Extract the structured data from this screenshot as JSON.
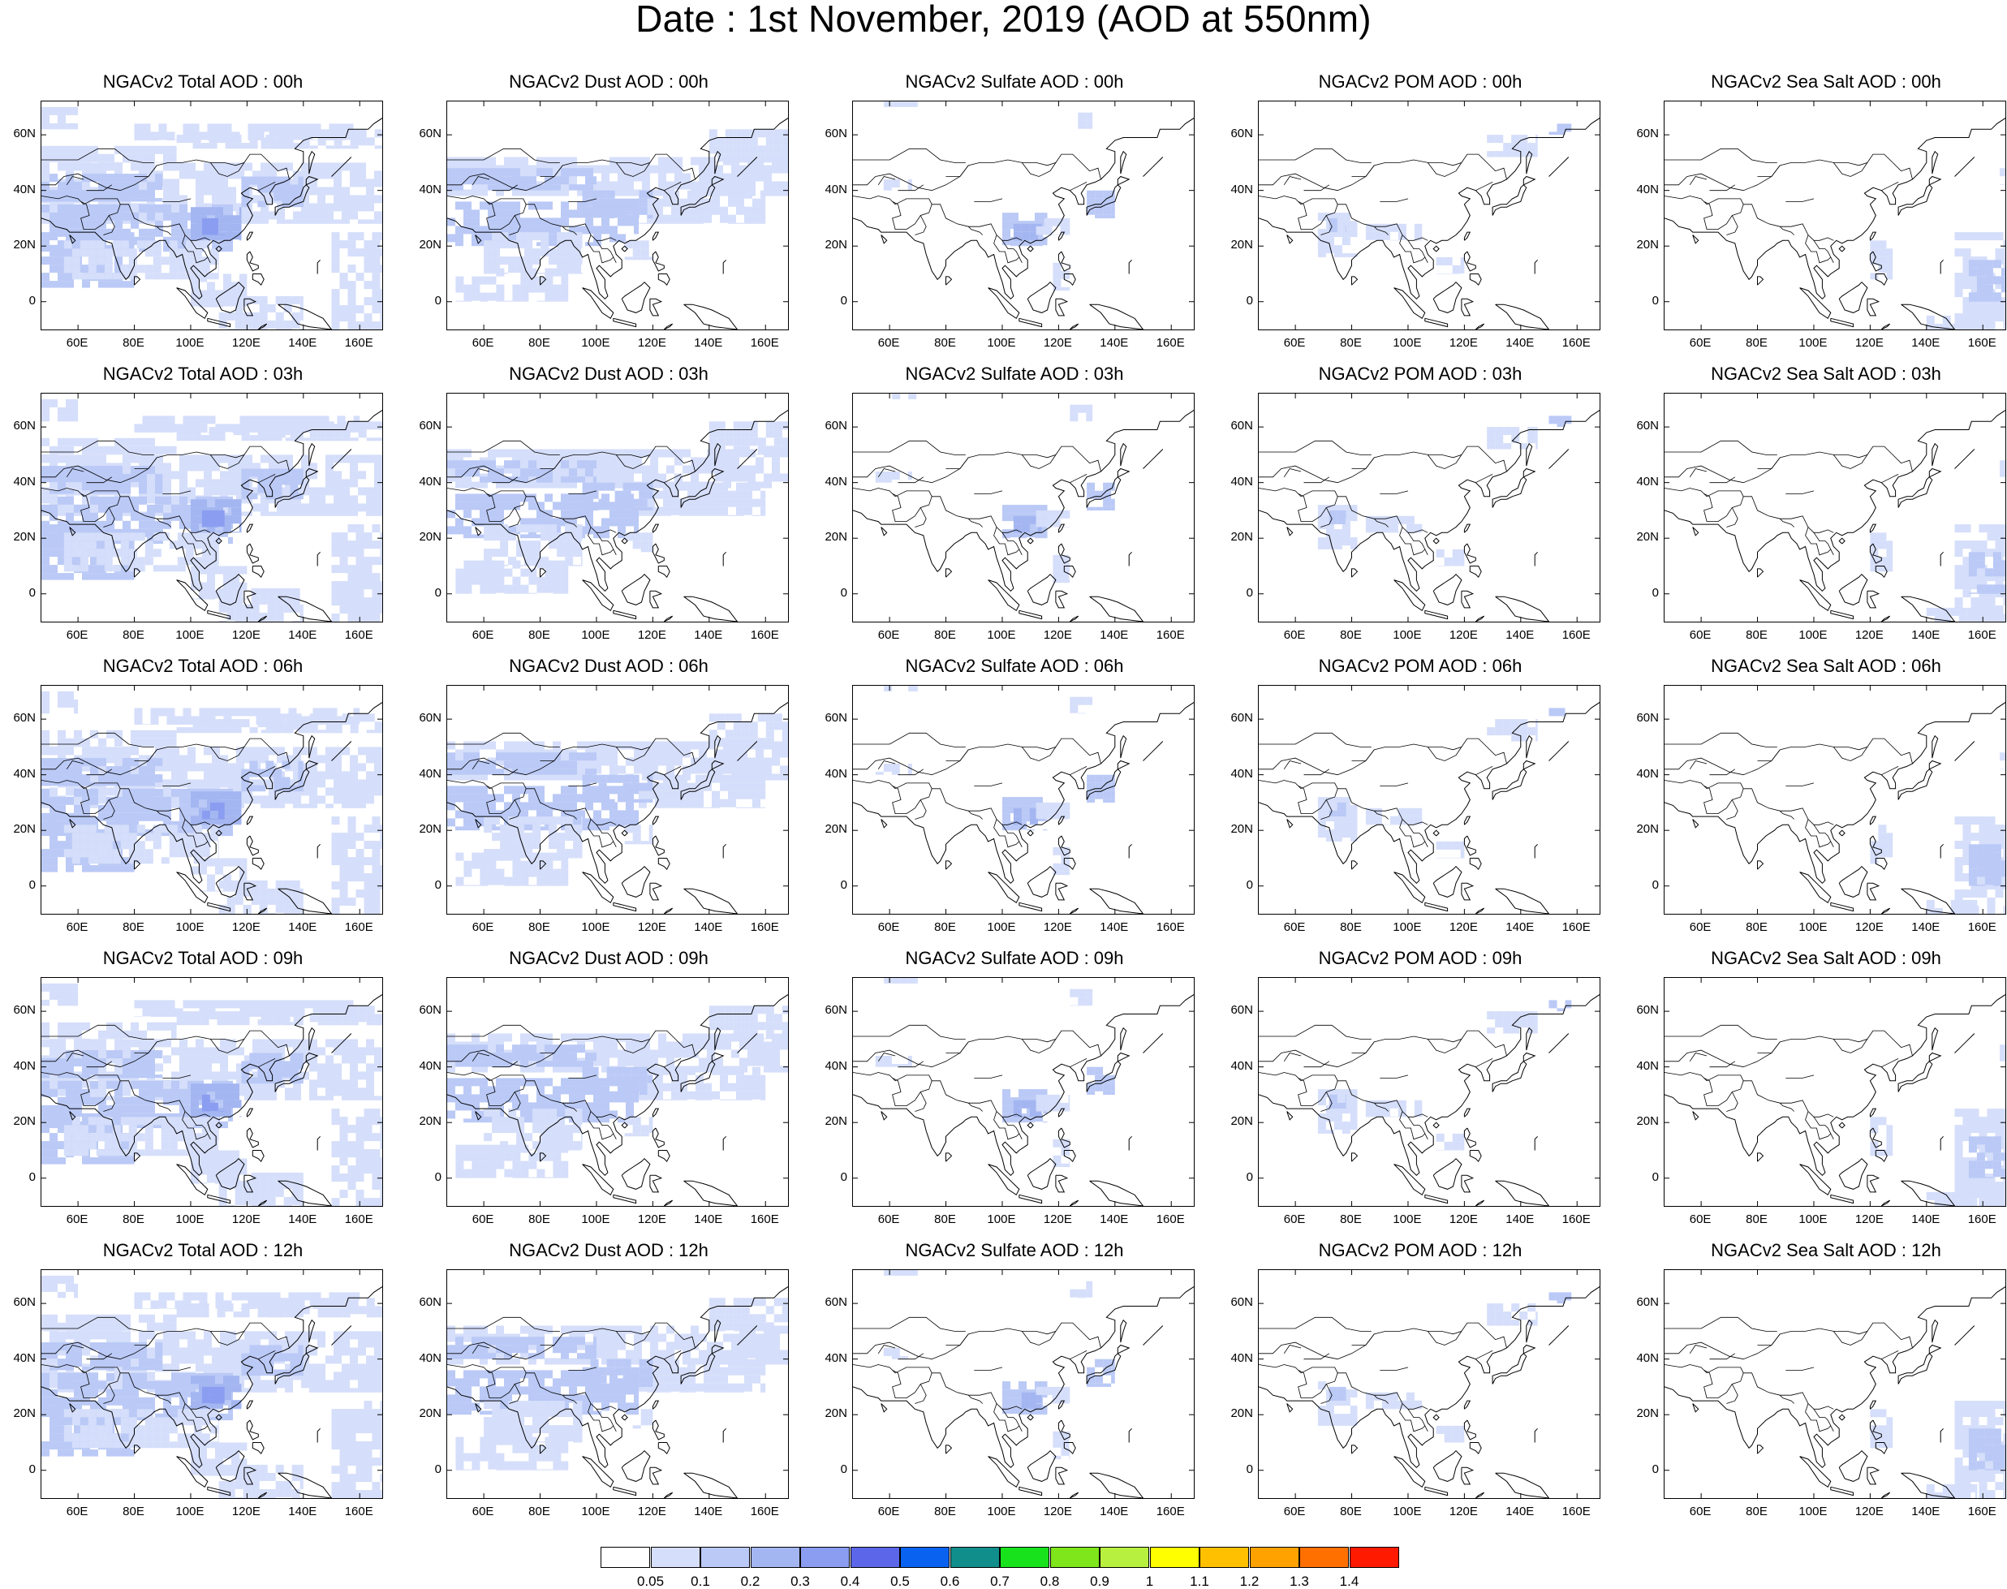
{
  "title": "Date : 1st November, 2019 (AOD at 550nm)",
  "axes": {
    "y_ticks": [
      "60N",
      "40N",
      "20N",
      "0"
    ],
    "x_ticks": [
      "60E",
      "80E",
      "100E",
      "120E",
      "140E",
      "160E"
    ]
  },
  "panels": [
    [
      "NGACv2 Total AOD : 00h",
      "NGACv2 Dust AOD : 00h",
      "NGACv2 Sulfate AOD : 00h",
      "NGACv2 POM AOD : 00h",
      "NGACv2 Sea Salt AOD : 00h"
    ],
    [
      "NGACv2 Total AOD : 03h",
      "NGACv2 Dust AOD : 03h",
      "NGACv2 Sulfate AOD : 03h",
      "NGACv2 POM AOD : 03h",
      "NGACv2 Sea Salt AOD : 03h"
    ],
    [
      "NGACv2 Total AOD : 06h",
      "NGACv2 Dust AOD : 06h",
      "NGACv2 Sulfate AOD : 06h",
      "NGACv2 POM AOD : 06h",
      "NGACv2 Sea Salt AOD : 06h"
    ],
    [
      "NGACv2 Total AOD : 09h",
      "NGACv2 Dust AOD : 09h",
      "NGACv2 Sulfate AOD : 09h",
      "NGACv2 POM AOD : 09h",
      "NGACv2 Sea Salt  AOD : 09h"
    ],
    [
      "NGACv2 Total AOD  : 12h",
      "NGACv2 Dust AOD : 12h",
      "NGACv2 Sulfate AOD : 12h",
      "NGACv2 POM  AOD : 12h",
      "NGACv2 Sea Salt  AOD : 12h"
    ]
  ],
  "colorbar": {
    "labels": [
      "0.05",
      "0.1",
      "0.2",
      "0.3",
      "0.4",
      "0.5",
      "0.6",
      "0.7",
      "0.8",
      "0.9",
      "1",
      "1.1",
      "1.2",
      "1.3",
      "1.4"
    ],
    "colors": [
      "#ffffff",
      "#d5defa",
      "#bac9f6",
      "#a4b6f1",
      "#8a9df0",
      "#5b66e8",
      "#0a63f0",
      "#108e8c",
      "#18e21c",
      "#7ee61a",
      "#b8f040",
      "#ffff00",
      "#ffc000",
      "#ffa200",
      "#ff7000",
      "#ff1a00"
    ]
  },
  "shading_colors": {
    "light": "#d5defa",
    "medium": "#bac9f6",
    "dark": "#a4b6f1",
    "darker": "#8a9df0"
  }
}
